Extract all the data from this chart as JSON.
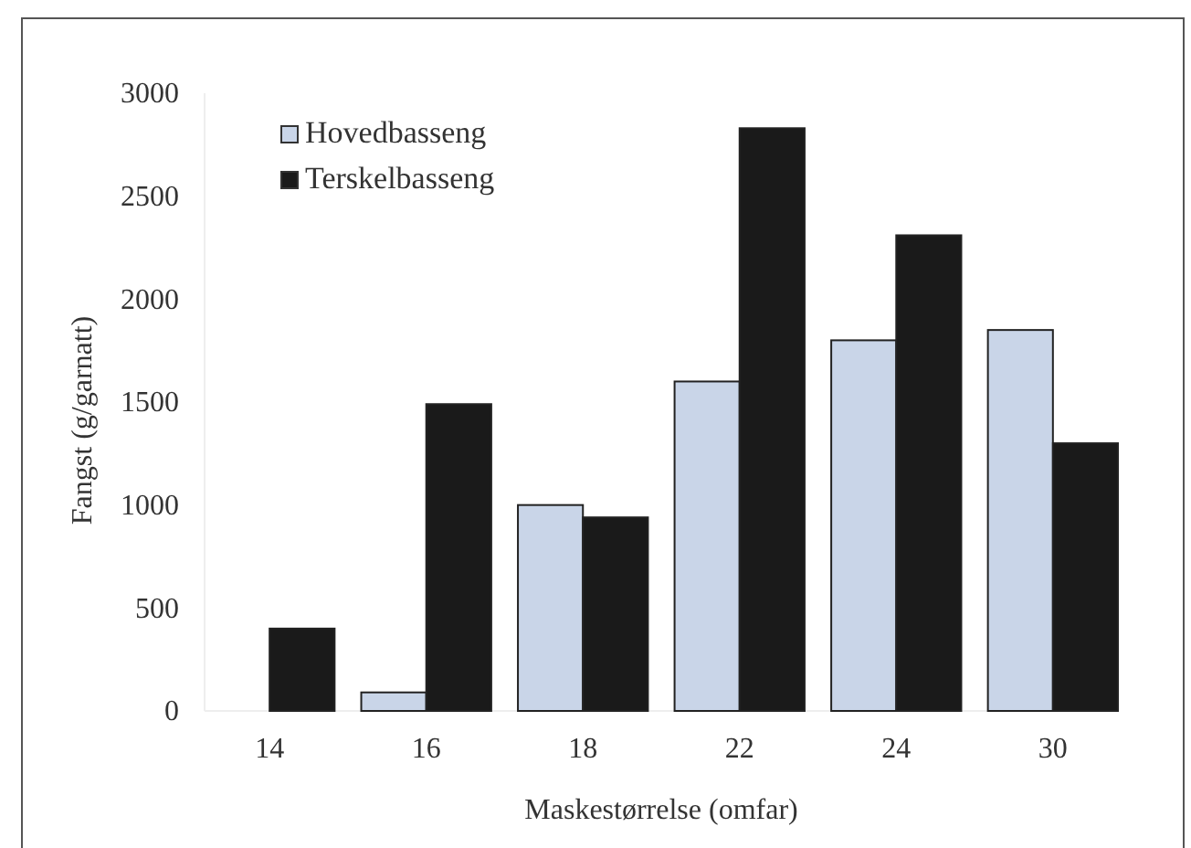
{
  "chart_data": {
    "type": "bar",
    "xlabel": "Maskestørrelse (omfar)",
    "ylabel": "Fangst (g/garnatt)",
    "categories": [
      "14",
      "16",
      "18",
      "22",
      "24",
      "30"
    ],
    "series": [
      {
        "name": "Hovedbasseng",
        "color": "#c9d5e8",
        "values": [
          0,
          90,
          1000,
          1600,
          1800,
          1850
        ]
      },
      {
        "name": "Terskelbasseng",
        "color": "#1a1a1a",
        "values": [
          400,
          1490,
          940,
          2830,
          2310,
          1300
        ]
      }
    ],
    "ylim": [
      0,
      3000
    ],
    "yticks": [
      0,
      500,
      1000,
      1500,
      2000,
      2500,
      3000
    ],
    "grid": false,
    "legend": "top left"
  }
}
